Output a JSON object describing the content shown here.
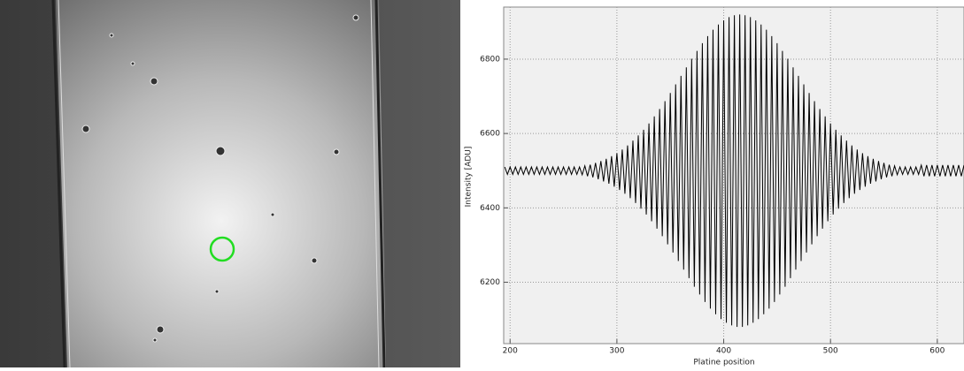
{
  "chart_data": {
    "type": "line",
    "xlabel": "Platine position",
    "ylabel": "Intensity [ADU]",
    "color": "#000000",
    "grid": true,
    "xlim": [
      194,
      625
    ],
    "ylim": [
      6035,
      6940
    ],
    "xticks": [
      200,
      300,
      400,
      500,
      600
    ],
    "yticks": [
      6200,
      6400,
      6600,
      6800
    ],
    "x": [
      195,
      197.5,
      200,
      202.5,
      205,
      207.5,
      210,
      212.5,
      215,
      217.5,
      220,
      222.5,
      225,
      227.5,
      230,
      232.5,
      235,
      237.5,
      240,
      242.5,
      245,
      247.5,
      250,
      252.5,
      255,
      257.5,
      260,
      262.5,
      265,
      267.5,
      270,
      272.5,
      275,
      277.5,
      280,
      282.5,
      285,
      287.5,
      290,
      292.5,
      295,
      297.5,
      300,
      302.5,
      305,
      307.5,
      310,
      312.5,
      315,
      317.5,
      320,
      322.5,
      325,
      327.5,
      330,
      332.5,
      335,
      337.5,
      340,
      342.5,
      345,
      347.5,
      350,
      352.5,
      355,
      357.5,
      360,
      362.5,
      365,
      367.5,
      370,
      372.5,
      375,
      377.5,
      380,
      382.5,
      385,
      387.5,
      390,
      392.5,
      395,
      397.5,
      400,
      402.5,
      405,
      407.5,
      410,
      412.5,
      415,
      417.5,
      420,
      422.5,
      425,
      427.5,
      430,
      432.5,
      435,
      437.5,
      440,
      442.5,
      445,
      447.5,
      450,
      452.5,
      455,
      457.5,
      460,
      462.5,
      465,
      467.5,
      470,
      472.5,
      475,
      477.5,
      480,
      482.5,
      485,
      487.5,
      490,
      492.5,
      495,
      497.5,
      500,
      502.5,
      505,
      507.5,
      510,
      512.5,
      515,
      517.5,
      520,
      522.5,
      525,
      527.5,
      530,
      532.5,
      535,
      537.5,
      540,
      542.5,
      545,
      547.5,
      550,
      552.5,
      555,
      557.5,
      560,
      562.5,
      565,
      567.5,
      570,
      572.5,
      575,
      577.5,
      580,
      582.5,
      585,
      587.5,
      590,
      592.5,
      595,
      597.5,
      600,
      602.5,
      605,
      607.5,
      610,
      612.5,
      615,
      617.5,
      620,
      622.5,
      625
    ],
    "values": [
      6510,
      6490,
      6510,
      6490,
      6510,
      6490,
      6510,
      6490,
      6510,
      6490,
      6510,
      6490,
      6510,
      6490,
      6510,
      6490,
      6510,
      6490,
      6510,
      6490,
      6510,
      6490,
      6510,
      6490,
      6510,
      6490,
      6510,
      6490,
      6510,
      6489,
      6513,
      6485,
      6516,
      6482,
      6521,
      6477,
      6526,
      6471,
      6532,
      6465,
      6539,
      6457,
      6547,
      6448,
      6557,
      6438,
      6568,
      6426,
      6581,
      6413,
      6595,
      6398,
      6610,
      6382,
      6627,
      6364,
      6646,
      6344,
      6666,
      6324,
      6687,
      6302,
      6709,
      6280,
      6732,
      6257,
      6755,
      6234,
      6778,
      6211,
      6801,
      6188,
      6822,
      6167,
      6843,
      6147,
      6862,
      6129,
      6879,
      6114,
      6893,
      6101,
      6904,
      6091,
      6913,
      6084,
      6918,
      6080,
      6920,
      6080,
      6918,
      6084,
      6913,
      6091,
      6904,
      6101,
      6893,
      6114,
      6879,
      6129,
      6862,
      6147,
      6843,
      6167,
      6822,
      6188,
      6801,
      6211,
      6778,
      6234,
      6755,
      6257,
      6732,
      6280,
      6709,
      6302,
      6687,
      6324,
      6666,
      6344,
      6646,
      6364,
      6627,
      6382,
      6610,
      6398,
      6595,
      6413,
      6581,
      6426,
      6568,
      6438,
      6557,
      6448,
      6547,
      6457,
      6539,
      6465,
      6532,
      6471,
      6526,
      6477,
      6521,
      6482,
      6516,
      6485,
      6513,
      6489,
      6510,
      6490,
      6510,
      6490,
      6510,
      6490,
      6510,
      6490,
      6515,
      6485,
      6515,
      6485,
      6515,
      6485,
      6515,
      6485,
      6515,
      6485,
      6515,
      6485,
      6515,
      6485,
      6515,
      6485,
      6515
    ]
  }
}
